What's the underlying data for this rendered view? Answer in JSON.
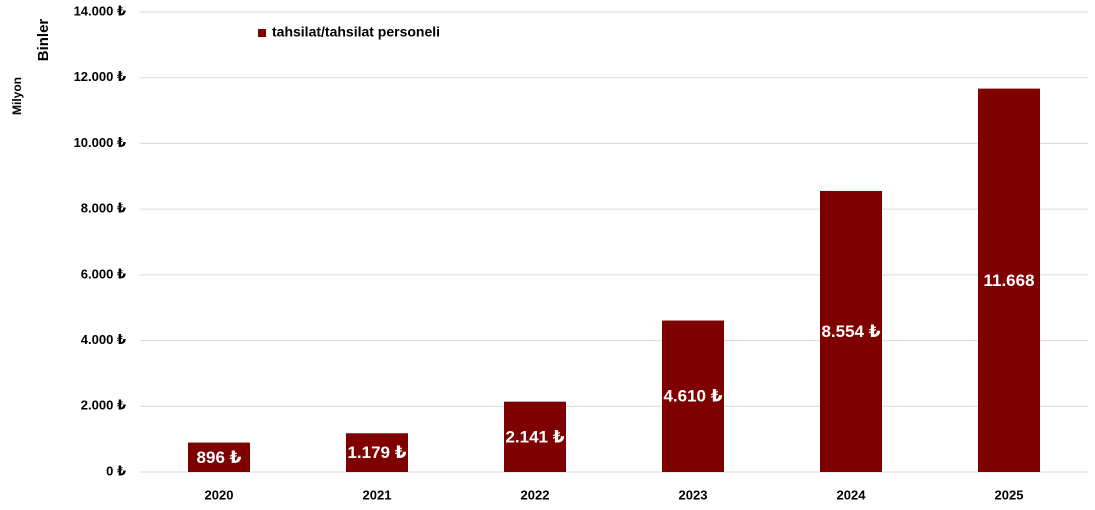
{
  "chart_data": {
    "type": "bar",
    "legend": "tahsilat/tahsilat personeli",
    "y_label": "Binler",
    "y_label_2": "Milyon",
    "categories": [
      "2020",
      "2021",
      "2022",
      "2023",
      "2024",
      "2025"
    ],
    "series": [
      {
        "name": "tahsilat/tahsilat personeli",
        "color": "#7f0000",
        "values": [
          896,
          1179,
          2141,
          4610,
          8554,
          11668
        ],
        "value_labels": [
          "896 ₺",
          "1.179 ₺",
          "2.141 ₺",
          "4.610 ₺",
          "8.554 ₺",
          "11.668"
        ]
      }
    ],
    "ylim": [
      0,
      14000
    ],
    "yticks": [
      {
        "value": 0,
        "label": "0 ₺"
      },
      {
        "value": 2000,
        "label": "2.000 ₺"
      },
      {
        "value": 4000,
        "label": "4.000 ₺"
      },
      {
        "value": 6000,
        "label": "6.000 ₺"
      },
      {
        "value": 8000,
        "label": "8.000 ₺"
      },
      {
        "value": 10000,
        "label": "10.000 ₺"
      },
      {
        "value": 12000,
        "label": "12.000 ₺"
      },
      {
        "value": 14000,
        "label": "14.000 ₺"
      }
    ],
    "grid": true
  }
}
